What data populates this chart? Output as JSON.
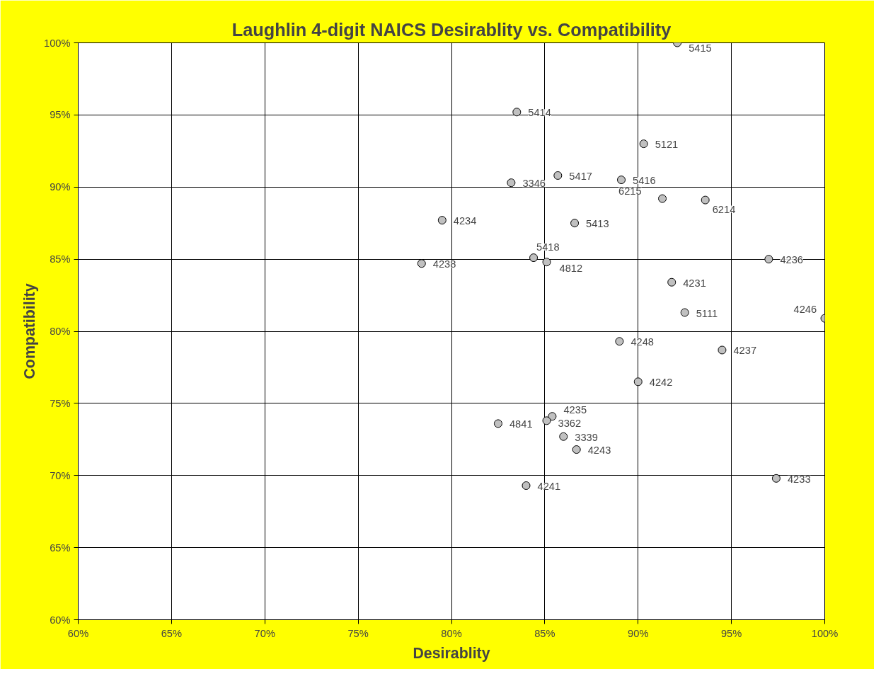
{
  "chart_data": {
    "type": "scatter",
    "title": "Laughlin 4-digit NAICS Desirablity vs. Compatibility",
    "xlabel": "Desirablity",
    "ylabel": "Compatibility",
    "x": [
      92.1,
      83.5,
      90.3,
      85.7,
      89.1,
      83.2,
      91.3,
      93.6,
      79.5,
      86.6,
      84.4,
      85.1,
      78.4,
      97.0,
      91.8,
      92.5,
      100.0,
      89.0,
      94.5,
      90.0,
      85.4,
      85.1,
      82.5,
      86.0,
      86.7,
      84.0,
      97.4
    ],
    "series": [
      {
        "color": "#c0c0c0",
        "values": [
          100.0,
          95.2,
          93.0,
          90.8,
          90.5,
          90.3,
          89.2,
          89.1,
          87.7,
          87.5,
          85.1,
          84.8,
          84.7,
          85.0,
          83.4,
          81.3,
          80.9,
          79.3,
          78.7,
          76.5,
          74.1,
          73.8,
          73.6,
          72.7,
          71.8,
          69.3,
          69.8
        ]
      }
    ],
    "annotations": [
      {
        "text": "5415",
        "x": 92.1,
        "y": 100.0
      },
      {
        "text": "5414",
        "x": 83.5,
        "y": 95.2
      },
      {
        "text": "5121",
        "x": 90.3,
        "y": 93.0
      },
      {
        "text": "5417",
        "x": 85.7,
        "y": 90.8
      },
      {
        "text": "5416",
        "x": 89.1,
        "y": 90.5
      },
      {
        "text": "3346",
        "x": 83.2,
        "y": 90.3
      },
      {
        "text": "6215",
        "x": 91.3,
        "y": 89.2
      },
      {
        "text": "6214",
        "x": 93.6,
        "y": 89.1
      },
      {
        "text": "4234",
        "x": 79.5,
        "y": 87.7
      },
      {
        "text": "5413",
        "x": 86.6,
        "y": 87.5
      },
      {
        "text": "5418",
        "x": 84.4,
        "y": 85.1
      },
      {
        "text": "4812",
        "x": 85.1,
        "y": 84.8
      },
      {
        "text": "4238",
        "x": 78.4,
        "y": 84.7
      },
      {
        "text": "4236",
        "x": 97.0,
        "y": 85.0
      },
      {
        "text": "4231",
        "x": 91.8,
        "y": 83.4
      },
      {
        "text": "5111",
        "x": 92.5,
        "y": 81.3
      },
      {
        "text": "4246",
        "x": 100.0,
        "y": 80.9
      },
      {
        "text": "4248",
        "x": 89.0,
        "y": 79.3
      },
      {
        "text": "4237",
        "x": 94.5,
        "y": 78.7
      },
      {
        "text": "4242",
        "x": 90.0,
        "y": 76.5
      },
      {
        "text": "4235",
        "x": 85.4,
        "y": 74.1
      },
      {
        "text": "3362",
        "x": 85.1,
        "y": 73.8
      },
      {
        "text": "4841",
        "x": 82.5,
        "y": 73.6
      },
      {
        "text": "3339",
        "x": 86.0,
        "y": 72.7
      },
      {
        "text": "4243",
        "x": 86.7,
        "y": 71.8
      },
      {
        "text": "4241",
        "x": 84.0,
        "y": 69.3
      },
      {
        "text": "4233",
        "x": 97.4,
        "y": 69.8
      }
    ],
    "xlim": [
      60,
      100
    ],
    "ylim": [
      60,
      100
    ],
    "xticks": [
      {
        "value": 60,
        "label": "60%"
      },
      {
        "value": 65,
        "label": "65%"
      },
      {
        "value": 70,
        "label": "70%"
      },
      {
        "value": 75,
        "label": "75%"
      },
      {
        "value": 80,
        "label": "80%"
      },
      {
        "value": 85,
        "label": "85%"
      },
      {
        "value": 90,
        "label": "90%"
      },
      {
        "value": 95,
        "label": "95%"
      },
      {
        "value": 100,
        "label": "100%"
      }
    ],
    "yticks": [
      {
        "value": 60,
        "label": "60%"
      },
      {
        "value": 65,
        "label": "65%"
      },
      {
        "value": 70,
        "label": "70%"
      },
      {
        "value": 75,
        "label": "75%"
      },
      {
        "value": 80,
        "label": "80%"
      },
      {
        "value": 85,
        "label": "85%"
      },
      {
        "value": 90,
        "label": "90%"
      },
      {
        "value": 95,
        "label": "95%"
      },
      {
        "value": 100,
        "label": "100%"
      }
    ],
    "grid": true,
    "marker": "circle"
  }
}
